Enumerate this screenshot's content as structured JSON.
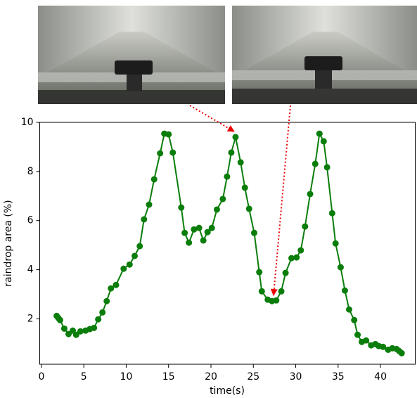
{
  "chart_data": {
    "type": "line",
    "xlabel": "time(s)",
    "ylabel": "raindrop area (%)",
    "x": [
      1.8,
      2.0,
      2.2,
      2.7,
      3.2,
      3.7,
      4.1,
      4.6,
      5.2,
      5.7,
      6.2,
      6.7,
      7.2,
      7.7,
      8.2,
      8.8,
      9.7,
      10.4,
      11.0,
      11.6,
      12.1,
      12.7,
      13.3,
      14.0,
      14.5,
      15.0,
      15.5,
      16.5,
      16.9,
      17.4,
      18.0,
      18.6,
      19.1,
      19.6,
      20.1,
      20.7,
      21.4,
      21.9,
      22.4,
      22.9,
      23.5,
      24.0,
      24.5,
      25.1,
      25.7,
      26.0,
      26.7,
      27.2,
      27.7,
      28.3,
      28.8,
      29.5,
      30.1,
      30.6,
      31.1,
      31.7,
      32.3,
      32.8,
      33.3,
      33.7,
      34.3,
      34.7,
      35.3,
      35.8,
      36.3,
      36.9,
      37.3,
      37.8,
      38.3,
      38.9,
      39.4,
      39.8,
      40.3,
      40.9,
      41.4,
      41.9,
      42.2,
      42.5
    ],
    "values": [
      2.12,
      2.03,
      1.95,
      1.6,
      1.38,
      1.52,
      1.35,
      1.49,
      1.52,
      1.58,
      1.63,
      1.98,
      2.26,
      2.72,
      3.24,
      3.38,
      4.04,
      4.21,
      4.56,
      4.96,
      6.05,
      6.65,
      7.68,
      8.74,
      9.54,
      9.51,
      8.77,
      6.53,
      5.5,
      5.1,
      5.64,
      5.7,
      5.19,
      5.53,
      5.7,
      6.45,
      6.88,
      7.79,
      8.77,
      9.4,
      8.37,
      7.34,
      6.48,
      5.5,
      3.9,
      3.12,
      2.78,
      2.72,
      2.75,
      3.12,
      3.87,
      4.47,
      4.5,
      4.79,
      5.76,
      7.08,
      8.31,
      9.54,
      9.23,
      8.17,
      6.3,
      5.07,
      4.1,
      3.15,
      2.38,
      1.95,
      1.35,
      1.06,
      1.12,
      0.92,
      0.97,
      0.89,
      0.86,
      0.74,
      0.8,
      0.77,
      0.69,
      0.6
    ],
    "color": "#0a7d0a",
    "xlim": [
      -0.2,
      44.1
    ],
    "ylim": [
      0.15,
      10
    ],
    "xticks": [
      0,
      5,
      10,
      15,
      20,
      25,
      30,
      35,
      40
    ],
    "yticks": [
      2,
      4,
      6,
      8,
      10
    ],
    "grid": false
  }
}
